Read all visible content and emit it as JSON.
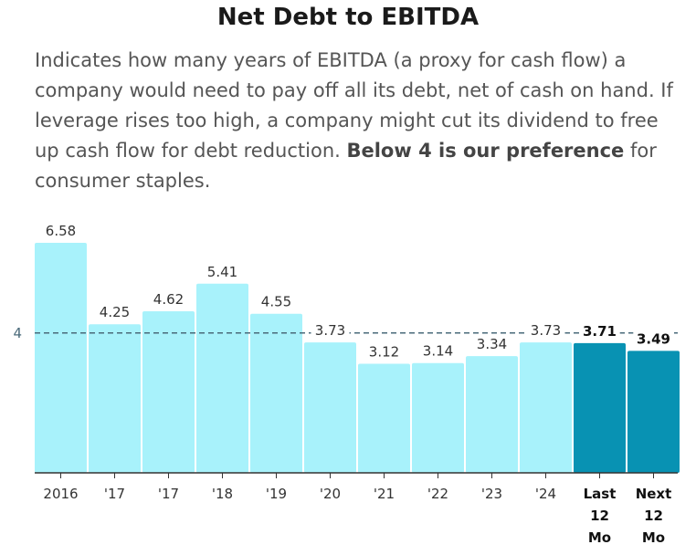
{
  "chart_data": {
    "type": "bar",
    "title": "Net Debt to EBITDA",
    "description_parts": [
      "Indicates how many years of EBITDA (a proxy for cash flow) a company would need to pay off all its debt, net of cash on hand. If leverage rises too high, a company might cut its dividend to free up cash flow for debt reduction. ",
      "Below 4 is our preference",
      " for consumer staples."
    ],
    "categories": [
      "2016",
      "'17",
      "'17",
      "'18",
      "'19",
      "'20",
      "'21",
      "'22",
      "'23",
      "'24",
      "Last 12 Mo",
      "Next 12 Mo"
    ],
    "values": [
      6.58,
      4.25,
      4.62,
      5.41,
      4.55,
      3.73,
      3.12,
      3.14,
      3.34,
      3.73,
      3.71,
      3.49
    ],
    "value_labels": [
      "6.58",
      "4.25",
      "4.62",
      "5.41",
      "4.55",
      "3.73",
      "3.12",
      "3.14",
      "3.34",
      "3.73",
      "3.71",
      "3.49"
    ],
    "highlighted": [
      false,
      false,
      false,
      false,
      false,
      false,
      false,
      false,
      false,
      false,
      true,
      true
    ],
    "reference_line": {
      "value": 4,
      "label": "4"
    },
    "ylim": [
      0,
      7
    ],
    "xlabel": "",
    "ylabel": "",
    "colors": {
      "bar": "#a8f2fb",
      "highlight": "#0892b3",
      "reference": "#4a6a7a",
      "axis": "#333333"
    }
  }
}
